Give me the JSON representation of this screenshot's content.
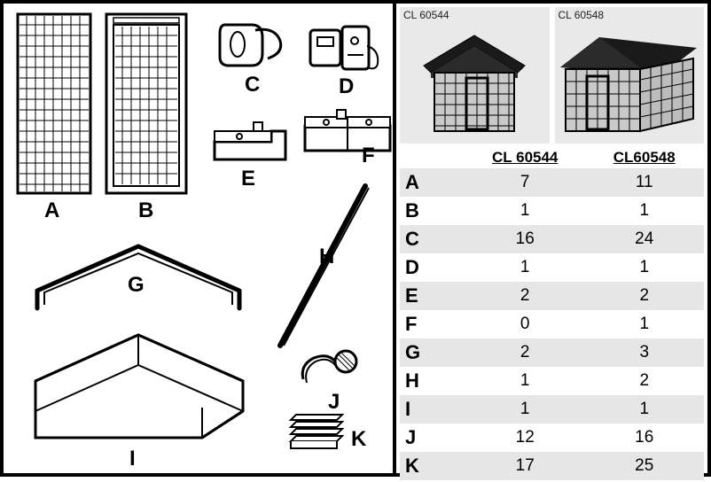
{
  "products": [
    {
      "sku": "CL 60544",
      "width_factor": 1.0
    },
    {
      "sku": "CL 60548",
      "width_factor": 1.6
    }
  ],
  "table": {
    "headers": [
      "",
      "CL 60544",
      "CL60548"
    ],
    "rows": [
      {
        "part": "A",
        "q1": "7",
        "q2": "11"
      },
      {
        "part": "B",
        "q1": "1",
        "q2": "1"
      },
      {
        "part": "C",
        "q1": "16",
        "q2": "24"
      },
      {
        "part": "D",
        "q1": "1",
        "q2": "1"
      },
      {
        "part": "E",
        "q1": "2",
        "q2": "2"
      },
      {
        "part": "F",
        "q1": "0",
        "q2": "1"
      },
      {
        "part": "G",
        "q1": "2",
        "q2": "3"
      },
      {
        "part": "H",
        "q1": "1",
        "q2": "2"
      },
      {
        "part": "I",
        "q1": "1",
        "q2": "1"
      },
      {
        "part": "J",
        "q1": "12",
        "q2": "16"
      },
      {
        "part": "K",
        "q1": "17",
        "q2": "25"
      }
    ]
  },
  "parts_labels": {
    "A": "A",
    "B": "B",
    "C": "C",
    "D": "D",
    "E": "E",
    "F": "F",
    "G": "G",
    "H": "H",
    "I": "I",
    "J": "J",
    "K": "K"
  },
  "style": {
    "shade_bg": "#e6e6e6",
    "border_color": "#000000",
    "font_label_size": 24,
    "font_table_size": 19
  }
}
